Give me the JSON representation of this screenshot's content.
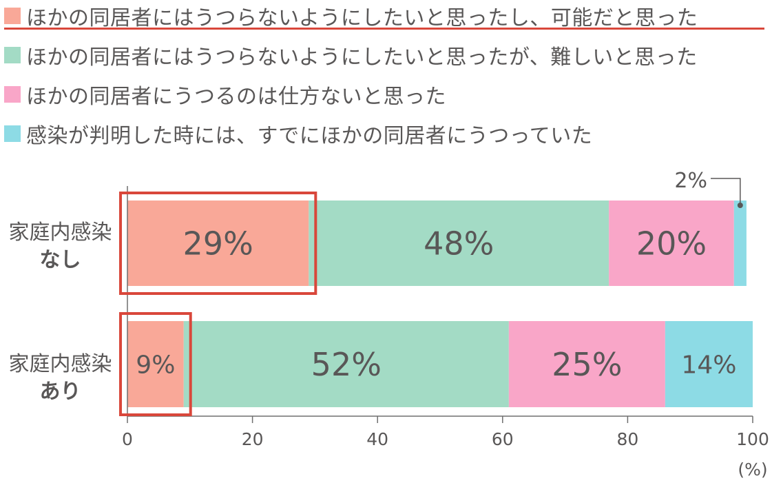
{
  "chart_data": {
    "type": "bar",
    "orientation": "horizontal",
    "stacked": true,
    "legend": [
      {
        "label": "ほかの同居者にはうつらないようにしたいと思ったし、可能だと思った",
        "color": "#f9a898"
      },
      {
        "label": "ほかの同居者にはうつらないようにしたいと思ったが、難しいと思った",
        "color": "#a3dbc5"
      },
      {
        "label": "ほかの同居者にうつるのは仕方ないと思った",
        "color": "#f9a6c8"
      },
      {
        "label": "感染が判明した時には、すでにほかの同居者にうつっていた",
        "color": "#8ddbe5"
      }
    ],
    "categories": [
      {
        "line1": "家庭内感染",
        "line2": "なし"
      },
      {
        "line1": "家庭内感染",
        "line2": "あり"
      }
    ],
    "series_values": [
      [
        29,
        48,
        20,
        2
      ],
      [
        9,
        52,
        25,
        14
      ]
    ],
    "data_labels": [
      [
        "29%",
        "48%",
        "20%",
        "2%"
      ],
      [
        "9%",
        "52%",
        "25%",
        "14%"
      ]
    ],
    "x_ticks": [
      "0",
      "20",
      "40",
      "60",
      "80",
      "100"
    ],
    "xlim": [
      0,
      100
    ],
    "x_unit": "(%)",
    "highlight_first_segment": true,
    "highlight_color": "#d9473b"
  }
}
